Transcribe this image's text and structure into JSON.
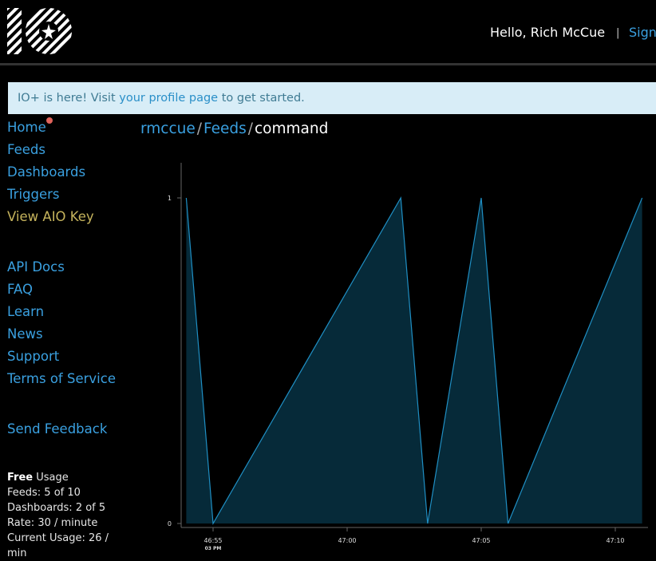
{
  "header": {
    "greeting": "Hello, Rich McCue",
    "separator": "|",
    "sign_out_label": "Sign"
  },
  "banner": {
    "prefix": "IO+ is here! Visit ",
    "link": "your profile page",
    "suffix": " to get started."
  },
  "nav": {
    "primary": [
      "Home",
      "Feeds",
      "Dashboards",
      "Triggers",
      "View AIO Key"
    ],
    "secondary": [
      "API Docs",
      "FAQ",
      "Learn",
      "News",
      "Support",
      "Terms of Service"
    ],
    "feedback": "Send Feedback"
  },
  "usage": {
    "plan": "Free",
    "plan_suffix": " Usage",
    "feeds": "Feeds: 5 of 10",
    "dashboards": "Dashboards: 2 of 5",
    "rate": "Rate: 30 / minute",
    "current": "Current Usage: 26 /",
    "current_cont": "min"
  },
  "breadcrumb": {
    "user": "rmccue",
    "feeds": "Feeds",
    "feed": "command",
    "slash": "/"
  },
  "colors": {
    "link": "#3aa0e0",
    "line": "#1f8fc4",
    "fill": "#062a39"
  },
  "chart_data": {
    "type": "area",
    "title": "",
    "xlabel": "",
    "ylabel": "",
    "ylim": [
      0,
      1
    ],
    "yticks": [
      0,
      1
    ],
    "xticks": [
      "46:55",
      "47:00",
      "47:05",
      "47:10"
    ],
    "xtick_sublabel": "03 PM",
    "series": [
      {
        "x": [
          "46:54",
          "46:55",
          "47:02",
          "47:03",
          "47:05",
          "47:06",
          "47:11"
        ],
        "values": [
          1,
          0,
          1,
          0,
          1,
          0,
          1
        ]
      }
    ]
  }
}
